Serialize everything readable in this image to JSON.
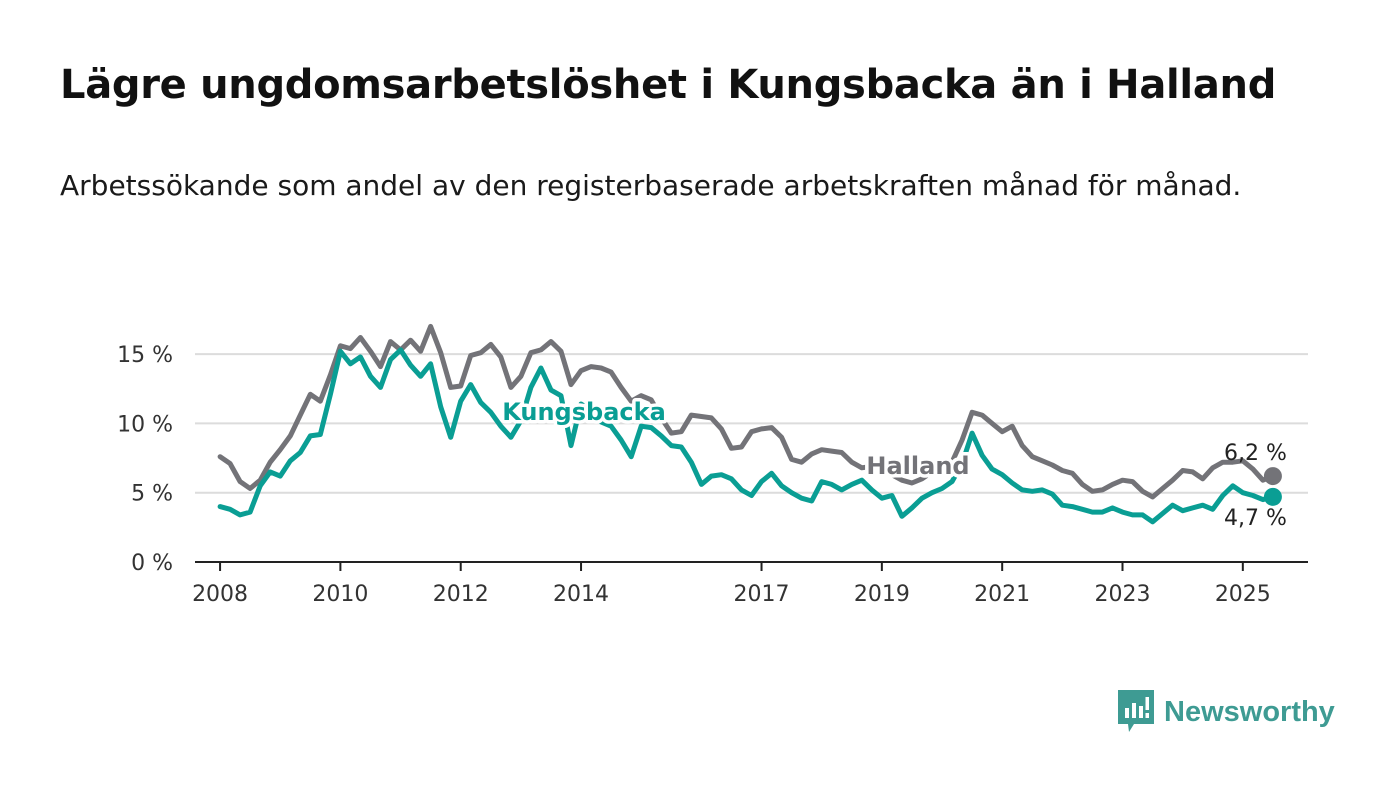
{
  "title": "Lägre ungdomsarbetslöshet i Kungsbacka än i Halland",
  "subtitle": "Arbetssökande som andel av den registerbaserade arbetskraften månad för månad.",
  "brand": {
    "name": "Newsworthy",
    "color": "#3e9b93",
    "icon": "newsworthy-logo-icon"
  },
  "chart_data": {
    "type": "line",
    "grid": true,
    "ylim": [
      0,
      17.5
    ],
    "y_ticks": [
      {
        "value": 0,
        "label": "0 %"
      },
      {
        "value": 5,
        "label": "5 %"
      },
      {
        "value": 10,
        "label": "10 %"
      },
      {
        "value": 15,
        "label": "15 %"
      }
    ],
    "xlim": [
      "2007-08",
      "2026-02"
    ],
    "x_ticks": [
      {
        "value": "2008-01",
        "label": "2008"
      },
      {
        "value": "2010-01",
        "label": "2010"
      },
      {
        "value": "2012-01",
        "label": "2012"
      },
      {
        "value": "2014-01",
        "label": "2014"
      },
      {
        "value": "2017-01",
        "label": "2017"
      },
      {
        "value": "2019-01",
        "label": "2019"
      },
      {
        "value": "2021-01",
        "label": "2021"
      },
      {
        "value": "2023-01",
        "label": "2023"
      },
      {
        "value": "2025-01",
        "label": "2025"
      }
    ],
    "series": [
      {
        "name": "Halland",
        "color": "#737378",
        "end_label": "6,2 %",
        "points": [
          [
            "2008-01",
            7.6
          ],
          [
            "2008-03",
            7.1
          ],
          [
            "2008-05",
            5.8
          ],
          [
            "2008-07",
            5.3
          ],
          [
            "2008-09",
            5.9
          ],
          [
            "2008-11",
            7.2
          ],
          [
            "2009-01",
            8.1
          ],
          [
            "2009-03",
            9.1
          ],
          [
            "2009-05",
            10.6
          ],
          [
            "2009-07",
            12.1
          ],
          [
            "2009-09",
            11.6
          ],
          [
            "2009-11",
            13.5
          ],
          [
            "2010-01",
            15.6
          ],
          [
            "2010-03",
            15.4
          ],
          [
            "2010-05",
            16.2
          ],
          [
            "2010-07",
            15.2
          ],
          [
            "2010-09",
            14.1
          ],
          [
            "2010-11",
            15.9
          ],
          [
            "2011-01",
            15.3
          ],
          [
            "2011-03",
            16.0
          ],
          [
            "2011-05",
            15.2
          ],
          [
            "2011-07",
            17.0
          ],
          [
            "2011-09",
            15.1
          ],
          [
            "2011-11",
            12.6
          ],
          [
            "2012-01",
            12.7
          ],
          [
            "2012-03",
            14.9
          ],
          [
            "2012-05",
            15.1
          ],
          [
            "2012-07",
            15.7
          ],
          [
            "2012-09",
            14.8
          ],
          [
            "2012-11",
            12.6
          ],
          [
            "2013-01",
            13.4
          ],
          [
            "2013-03",
            15.1
          ],
          [
            "2013-05",
            15.3
          ],
          [
            "2013-07",
            15.9
          ],
          [
            "2013-09",
            15.2
          ],
          [
            "2013-11",
            12.8
          ],
          [
            "2014-01",
            13.8
          ],
          [
            "2014-03",
            14.1
          ],
          [
            "2014-05",
            14.0
          ],
          [
            "2014-07",
            13.7
          ],
          [
            "2014-09",
            12.6
          ],
          [
            "2014-11",
            11.6
          ],
          [
            "2015-01",
            12.0
          ],
          [
            "2015-03",
            11.7
          ],
          [
            "2015-05",
            10.4
          ],
          [
            "2015-07",
            9.3
          ],
          [
            "2015-09",
            9.4
          ],
          [
            "2015-11",
            10.6
          ],
          [
            "2016-01",
            10.5
          ],
          [
            "2016-03",
            10.4
          ],
          [
            "2016-05",
            9.6
          ],
          [
            "2016-07",
            8.2
          ],
          [
            "2016-09",
            8.3
          ],
          [
            "2016-11",
            9.4
          ],
          [
            "2017-01",
            9.6
          ],
          [
            "2017-03",
            9.7
          ],
          [
            "2017-05",
            9.0
          ],
          [
            "2017-07",
            7.4
          ],
          [
            "2017-09",
            7.2
          ],
          [
            "2017-11",
            7.8
          ],
          [
            "2018-01",
            8.1
          ],
          [
            "2018-03",
            8.0
          ],
          [
            "2018-05",
            7.9
          ],
          [
            "2018-07",
            7.2
          ],
          [
            "2018-09",
            6.8
          ],
          [
            "2018-11",
            6.9
          ],
          [
            "2019-01",
            6.6
          ],
          [
            "2019-03",
            6.3
          ],
          [
            "2019-05",
            5.9
          ],
          [
            "2019-07",
            5.7
          ],
          [
            "2019-09",
            6.0
          ],
          [
            "2019-11",
            6.5
          ],
          [
            "2020-01",
            6.8
          ],
          [
            "2020-03",
            7.2
          ],
          [
            "2020-05",
            8.8
          ],
          [
            "2020-07",
            10.8
          ],
          [
            "2020-09",
            10.6
          ],
          [
            "2020-11",
            10.0
          ],
          [
            "2021-01",
            9.4
          ],
          [
            "2021-03",
            9.8
          ],
          [
            "2021-05",
            8.4
          ],
          [
            "2021-07",
            7.6
          ],
          [
            "2021-09",
            7.3
          ],
          [
            "2021-11",
            7.0
          ],
          [
            "2022-01",
            6.6
          ],
          [
            "2022-03",
            6.4
          ],
          [
            "2022-05",
            5.6
          ],
          [
            "2022-07",
            5.1
          ],
          [
            "2022-09",
            5.2
          ],
          [
            "2022-11",
            5.6
          ],
          [
            "2023-01",
            5.9
          ],
          [
            "2023-03",
            5.8
          ],
          [
            "2023-05",
            5.1
          ],
          [
            "2023-07",
            4.7
          ],
          [
            "2023-09",
            5.3
          ],
          [
            "2023-11",
            5.9
          ],
          [
            "2024-01",
            6.6
          ],
          [
            "2024-03",
            6.5
          ],
          [
            "2024-05",
            6.0
          ],
          [
            "2024-07",
            6.8
          ],
          [
            "2024-09",
            7.2
          ],
          [
            "2024-11",
            7.2
          ],
          [
            "2025-01",
            7.3
          ],
          [
            "2025-03",
            6.7
          ],
          [
            "2025-05",
            5.9
          ],
          [
            "2025-07",
            6.2
          ]
        ]
      },
      {
        "name": "Kungsbacka",
        "color": "#0a9e94",
        "end_label": "4,7 %",
        "points": [
          [
            "2008-01",
            4.0
          ],
          [
            "2008-03",
            3.8
          ],
          [
            "2008-05",
            3.4
          ],
          [
            "2008-07",
            3.6
          ],
          [
            "2008-09",
            5.5
          ],
          [
            "2008-11",
            6.5
          ],
          [
            "2009-01",
            6.2
          ],
          [
            "2009-03",
            7.3
          ],
          [
            "2009-05",
            7.9
          ],
          [
            "2009-07",
            9.1
          ],
          [
            "2009-09",
            9.2
          ],
          [
            "2009-11",
            12.1
          ],
          [
            "2010-01",
            15.2
          ],
          [
            "2010-03",
            14.3
          ],
          [
            "2010-05",
            14.8
          ],
          [
            "2010-07",
            13.4
          ],
          [
            "2010-09",
            12.6
          ],
          [
            "2010-11",
            14.6
          ],
          [
            "2011-01",
            15.3
          ],
          [
            "2011-03",
            14.2
          ],
          [
            "2011-05",
            13.4
          ],
          [
            "2011-07",
            14.3
          ],
          [
            "2011-09",
            11.2
          ],
          [
            "2011-11",
            9.0
          ],
          [
            "2012-01",
            11.6
          ],
          [
            "2012-03",
            12.8
          ],
          [
            "2012-05",
            11.5
          ],
          [
            "2012-07",
            10.8
          ],
          [
            "2012-09",
            9.8
          ],
          [
            "2012-11",
            9.0
          ],
          [
            "2013-01",
            10.2
          ],
          [
            "2013-03",
            12.6
          ],
          [
            "2013-05",
            14.0
          ],
          [
            "2013-07",
            12.4
          ],
          [
            "2013-09",
            12.0
          ],
          [
            "2013-11",
            8.4
          ],
          [
            "2014-01",
            11.4
          ],
          [
            "2014-03",
            10.9
          ],
          [
            "2014-05",
            10.1
          ],
          [
            "2014-07",
            9.8
          ],
          [
            "2014-09",
            8.8
          ],
          [
            "2014-11",
            7.6
          ],
          [
            "2015-01",
            9.8
          ],
          [
            "2015-03",
            9.7
          ],
          [
            "2015-05",
            9.1
          ],
          [
            "2015-07",
            8.4
          ],
          [
            "2015-09",
            8.3
          ],
          [
            "2015-11",
            7.2
          ],
          [
            "2016-01",
            5.6
          ],
          [
            "2016-03",
            6.2
          ],
          [
            "2016-05",
            6.3
          ],
          [
            "2016-07",
            6.0
          ],
          [
            "2016-09",
            5.2
          ],
          [
            "2016-11",
            4.8
          ],
          [
            "2017-01",
            5.8
          ],
          [
            "2017-03",
            6.4
          ],
          [
            "2017-05",
            5.5
          ],
          [
            "2017-07",
            5.0
          ],
          [
            "2017-09",
            4.6
          ],
          [
            "2017-11",
            4.4
          ],
          [
            "2018-01",
            5.8
          ],
          [
            "2018-03",
            5.6
          ],
          [
            "2018-05",
            5.2
          ],
          [
            "2018-07",
            5.6
          ],
          [
            "2018-09",
            5.9
          ],
          [
            "2018-11",
            5.2
          ],
          [
            "2019-01",
            4.6
          ],
          [
            "2019-03",
            4.8
          ],
          [
            "2019-05",
            3.3
          ],
          [
            "2019-07",
            3.9
          ],
          [
            "2019-09",
            4.6
          ],
          [
            "2019-11",
            5.0
          ],
          [
            "2020-01",
            5.3
          ],
          [
            "2020-03",
            5.8
          ],
          [
            "2020-05",
            7.1
          ],
          [
            "2020-07",
            9.3
          ],
          [
            "2020-09",
            7.7
          ],
          [
            "2020-11",
            6.7
          ],
          [
            "2021-01",
            6.3
          ],
          [
            "2021-03",
            5.7
          ],
          [
            "2021-05",
            5.2
          ],
          [
            "2021-07",
            5.1
          ],
          [
            "2021-09",
            5.2
          ],
          [
            "2021-11",
            4.9
          ],
          [
            "2022-01",
            4.1
          ],
          [
            "2022-03",
            4.0
          ],
          [
            "2022-05",
            3.8
          ],
          [
            "2022-07",
            3.6
          ],
          [
            "2022-09",
            3.6
          ],
          [
            "2022-11",
            3.9
          ],
          [
            "2023-01",
            3.6
          ],
          [
            "2023-03",
            3.4
          ],
          [
            "2023-05",
            3.4
          ],
          [
            "2023-07",
            2.9
          ],
          [
            "2023-09",
            3.5
          ],
          [
            "2023-11",
            4.1
          ],
          [
            "2024-01",
            3.7
          ],
          [
            "2024-03",
            3.9
          ],
          [
            "2024-05",
            4.1
          ],
          [
            "2024-07",
            3.8
          ],
          [
            "2024-09",
            4.8
          ],
          [
            "2024-11",
            5.5
          ],
          [
            "2025-01",
            5.0
          ],
          [
            "2025-03",
            4.8
          ],
          [
            "2025-05",
            4.5
          ],
          [
            "2025-07",
            4.7
          ]
        ]
      }
    ]
  }
}
